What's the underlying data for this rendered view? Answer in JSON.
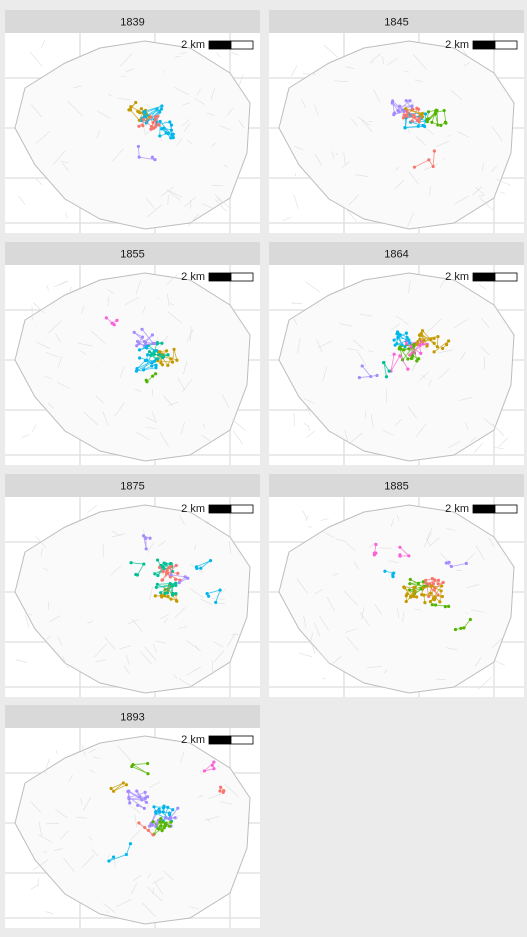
{
  "panels": [
    {
      "title": "1839",
      "scale_label": "2 km"
    },
    {
      "title": "1845",
      "scale_label": "2 km"
    },
    {
      "title": "1855",
      "scale_label": "2 km"
    },
    {
      "title": "1864",
      "scale_label": "2 km"
    },
    {
      "title": "1875",
      "scale_label": "2 km"
    },
    {
      "title": "1885",
      "scale_label": "2 km"
    },
    {
      "title": "1893",
      "scale_label": "2 km"
    }
  ]
}
